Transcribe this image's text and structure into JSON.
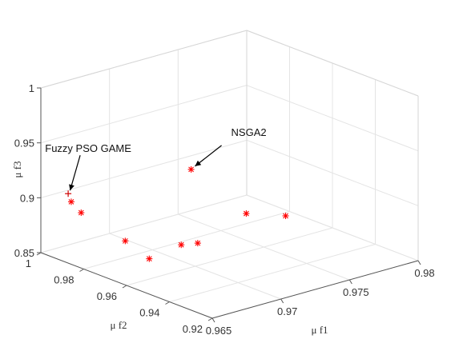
{
  "chart_data": {
    "type": "scatter",
    "title": "",
    "xlabel": "μ f1",
    "ylabel": "μ f2",
    "zlabel": "μ f3",
    "xlim": [
      0.965,
      0.98
    ],
    "ylim": [
      0.92,
      1.0
    ],
    "zlim": [
      0.85,
      1.0
    ],
    "x_ticks": [
      "0.965",
      "0.97",
      "0.975",
      "0.98"
    ],
    "y_ticks": [
      "0.92",
      "0.94",
      "0.96",
      "0.98",
      "1"
    ],
    "z_ticks": [
      "0.85",
      "0.9",
      "0.95",
      "1"
    ],
    "grid": true,
    "marker_color": "#ff0000",
    "points": [
      {
        "x": 0.9662,
        "y": 0.9935,
        "z": 0.897,
        "marker": "*"
      },
      {
        "x": 0.9665,
        "y": 0.9908,
        "z": 0.888,
        "marker": "*"
      },
      {
        "x": 0.9667,
        "y": 0.9715,
        "z": 0.876,
        "marker": "*"
      },
      {
        "x": 0.9672,
        "y": 0.9635,
        "z": 0.864,
        "marker": "*"
      },
      {
        "x": 0.9702,
        "y": 0.9678,
        "z": 0.863,
        "marker": "*"
      },
      {
        "x": 0.9712,
        "y": 0.9665,
        "z": 0.862,
        "marker": "*"
      },
      {
        "x": 0.9765,
        "y": 0.9778,
        "z": 0.862,
        "marker": "*"
      },
      {
        "x": 0.9742,
        "y": 0.9888,
        "z": 0.902,
        "marker": "*"
      },
      {
        "x": 0.9779,
        "y": 0.9684,
        "z": 0.862,
        "marker": "*"
      },
      {
        "x": 0.9666,
        "y": 0.9975,
        "z": 0.9,
        "marker": "+"
      }
    ],
    "annotations": [
      {
        "text": "Fuzzy PSO GAME",
        "target_point": 9
      },
      {
        "text": "NSGA2",
        "target_point": 7
      }
    ]
  }
}
